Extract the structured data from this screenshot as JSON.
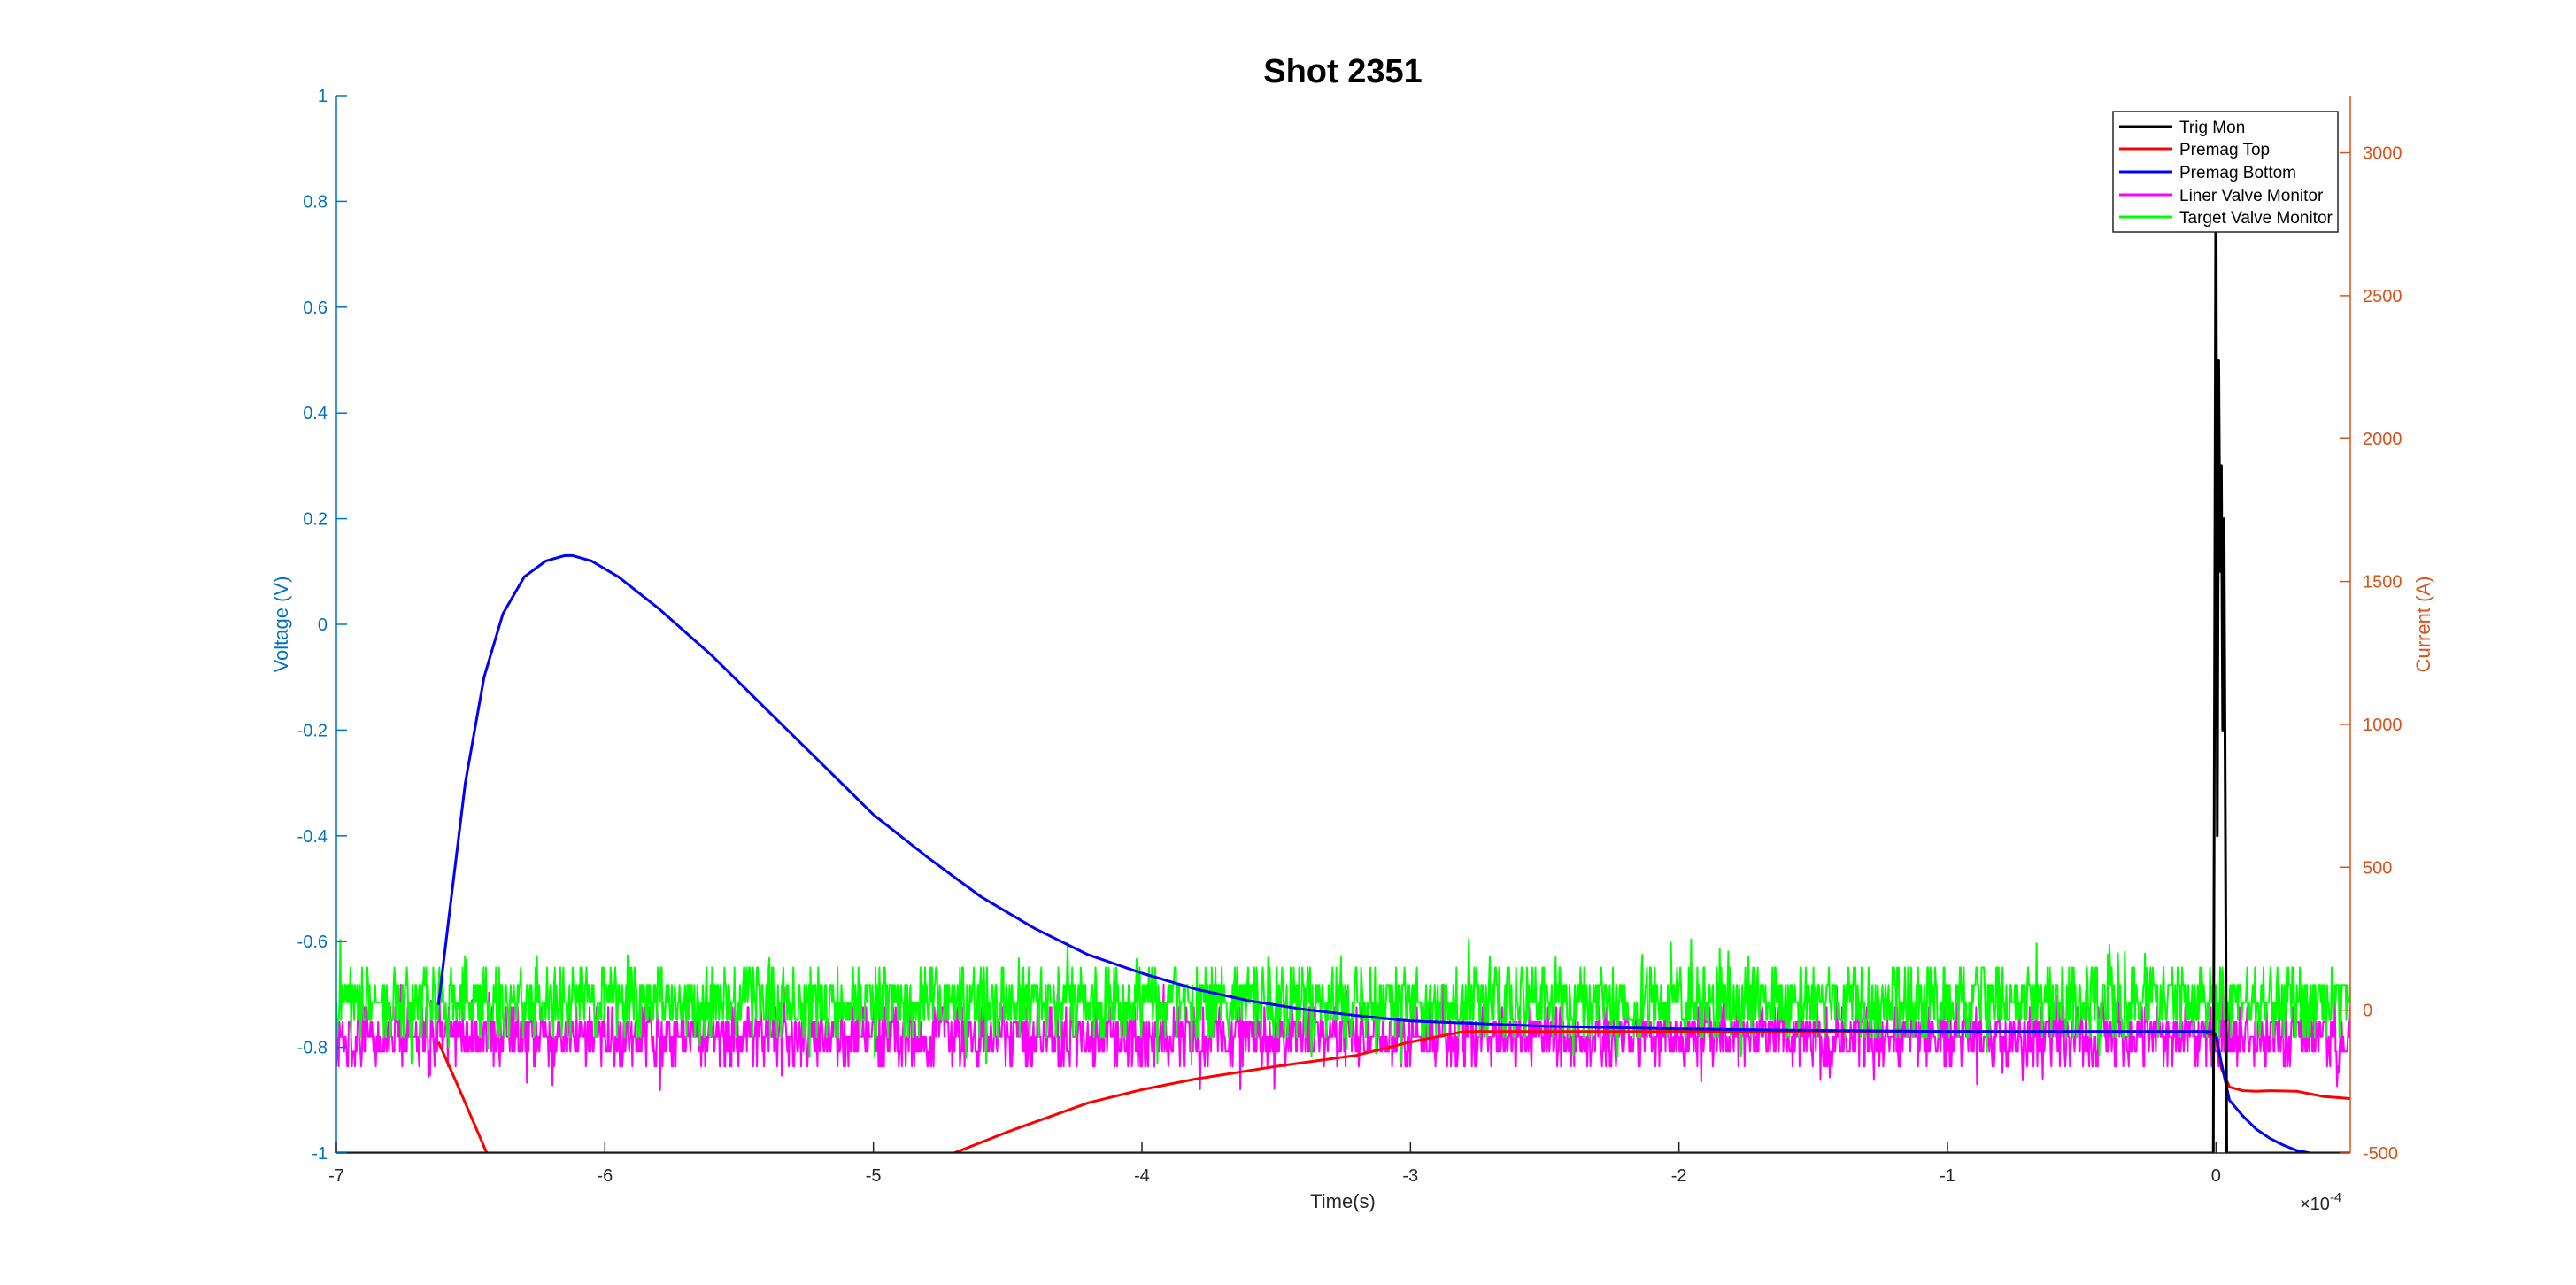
{
  "chart_data": {
    "type": "line",
    "title": "Shot 2351",
    "xlabel": "Time(s)",
    "x_exponent_label": "×10",
    "x_exponent_power": "-4",
    "xlim": [
      -7,
      0.5
    ],
    "xticks": [
      -7,
      -6,
      -5,
      -4,
      -3,
      -2,
      -1,
      0
    ],
    "ylabel_left": "Voltage (V)",
    "ylim_left": [
      -1,
      1
    ],
    "yticks_left": [
      "-1",
      "-0.8",
      "-0.6",
      "-0.4",
      "-0.2",
      "0",
      "0.2",
      "0.4",
      "0.6",
      "0.8",
      "1"
    ],
    "ylabel_right": "Current (A)",
    "ylim_right": [
      -500,
      3200
    ],
    "yticks_right": [
      "-500",
      "0",
      "500",
      "1000",
      "1500",
      "2000",
      "2500",
      "3000"
    ],
    "grid": false,
    "legend_position": "top-right",
    "colors": {
      "left_axis": "#0072BD",
      "right_axis": "#D95319"
    },
    "series": [
      {
        "name": "Trig Mon",
        "color": "#000000",
        "axis": "left",
        "x": [
          -7,
          -0.02,
          -0.01,
          0,
          0.005,
          0.01,
          0.015,
          0.02,
          0.025,
          0.03,
          0.035,
          0.04,
          0.05,
          0.06,
          0.5
        ],
        "y": [
          -1,
          -1,
          -1,
          0.95,
          -0.4,
          0.5,
          0.1,
          0.3,
          -0.2,
          0.2,
          -0.4,
          -1,
          -1,
          -1,
          -1
        ]
      },
      {
        "name": "Premag Top",
        "color": "#FF0000",
        "axis": "left",
        "x": [
          -6.62,
          -6.55,
          -6.44,
          -4.7,
          -4.5,
          -4.2,
          -4.0,
          -3.8,
          -3.5,
          -3.2,
          -3.0,
          -2.8,
          -2.5,
          -2.2,
          -2.0,
          -1.5,
          -1.0,
          -0.5,
          -0.05,
          0.0,
          0.02,
          0.05,
          0.1,
          0.15,
          0.2,
          0.3,
          0.4,
          0.5
        ],
        "y": [
          -0.79,
          -0.87,
          -1,
          -1,
          -0.96,
          -0.905,
          -0.88,
          -0.86,
          -0.836,
          -0.815,
          -0.79,
          -0.77,
          -0.77,
          -0.77,
          -0.77,
          -0.77,
          -0.77,
          -0.77,
          -0.77,
          -0.78,
          -0.84,
          -0.875,
          -0.882,
          -0.883,
          -0.882,
          -0.883,
          -0.893,
          -0.897
        ]
      },
      {
        "name": "Premag Bottom",
        "color": "#0000FF",
        "axis": "left",
        "x": [
          -6.62,
          -6.58,
          -6.52,
          -6.45,
          -6.38,
          -6.3,
          -6.22,
          -6.15,
          -6.12,
          -6.05,
          -5.95,
          -5.8,
          -5.6,
          -5.4,
          -5.2,
          -5.0,
          -4.8,
          -4.6,
          -4.4,
          -4.2,
          -4.0,
          -3.8,
          -3.6,
          -3.4,
          -3.2,
          -3.0,
          -2.5,
          -2.0,
          -1.5,
          -1.0,
          -0.5,
          -0.02,
          0.0,
          0.02,
          0.05,
          0.1,
          0.15,
          0.2,
          0.25,
          0.3,
          0.35,
          0.4,
          0.5
        ],
        "y": [
          -0.72,
          -0.55,
          -0.3,
          -0.1,
          0.02,
          0.09,
          0.12,
          0.13,
          0.13,
          0.12,
          0.09,
          0.03,
          -0.06,
          -0.16,
          -0.26,
          -0.36,
          -0.44,
          -0.515,
          -0.575,
          -0.625,
          -0.66,
          -0.69,
          -0.712,
          -0.728,
          -0.74,
          -0.75,
          -0.76,
          -0.765,
          -0.768,
          -0.77,
          -0.77,
          -0.77,
          -0.775,
          -0.83,
          -0.9,
          -0.93,
          -0.955,
          -0.972,
          -0.985,
          -0.995,
          -1.0,
          -1.0,
          -1.0
        ]
      },
      {
        "name": "Liner Valve Monitor",
        "color": "#FF00FF",
        "axis": "left",
        "pattern": "noise",
        "x_range": [
          -7,
          0.5
        ],
        "mean": -0.78,
        "amplitude": 0.085
      },
      {
        "name": "Target Valve Monitor",
        "color": "#00FF00",
        "axis": "left",
        "pattern": "noise",
        "x_range": [
          -7,
          0.5
        ],
        "mean": -0.715,
        "amplitude": 0.1
      }
    ]
  }
}
